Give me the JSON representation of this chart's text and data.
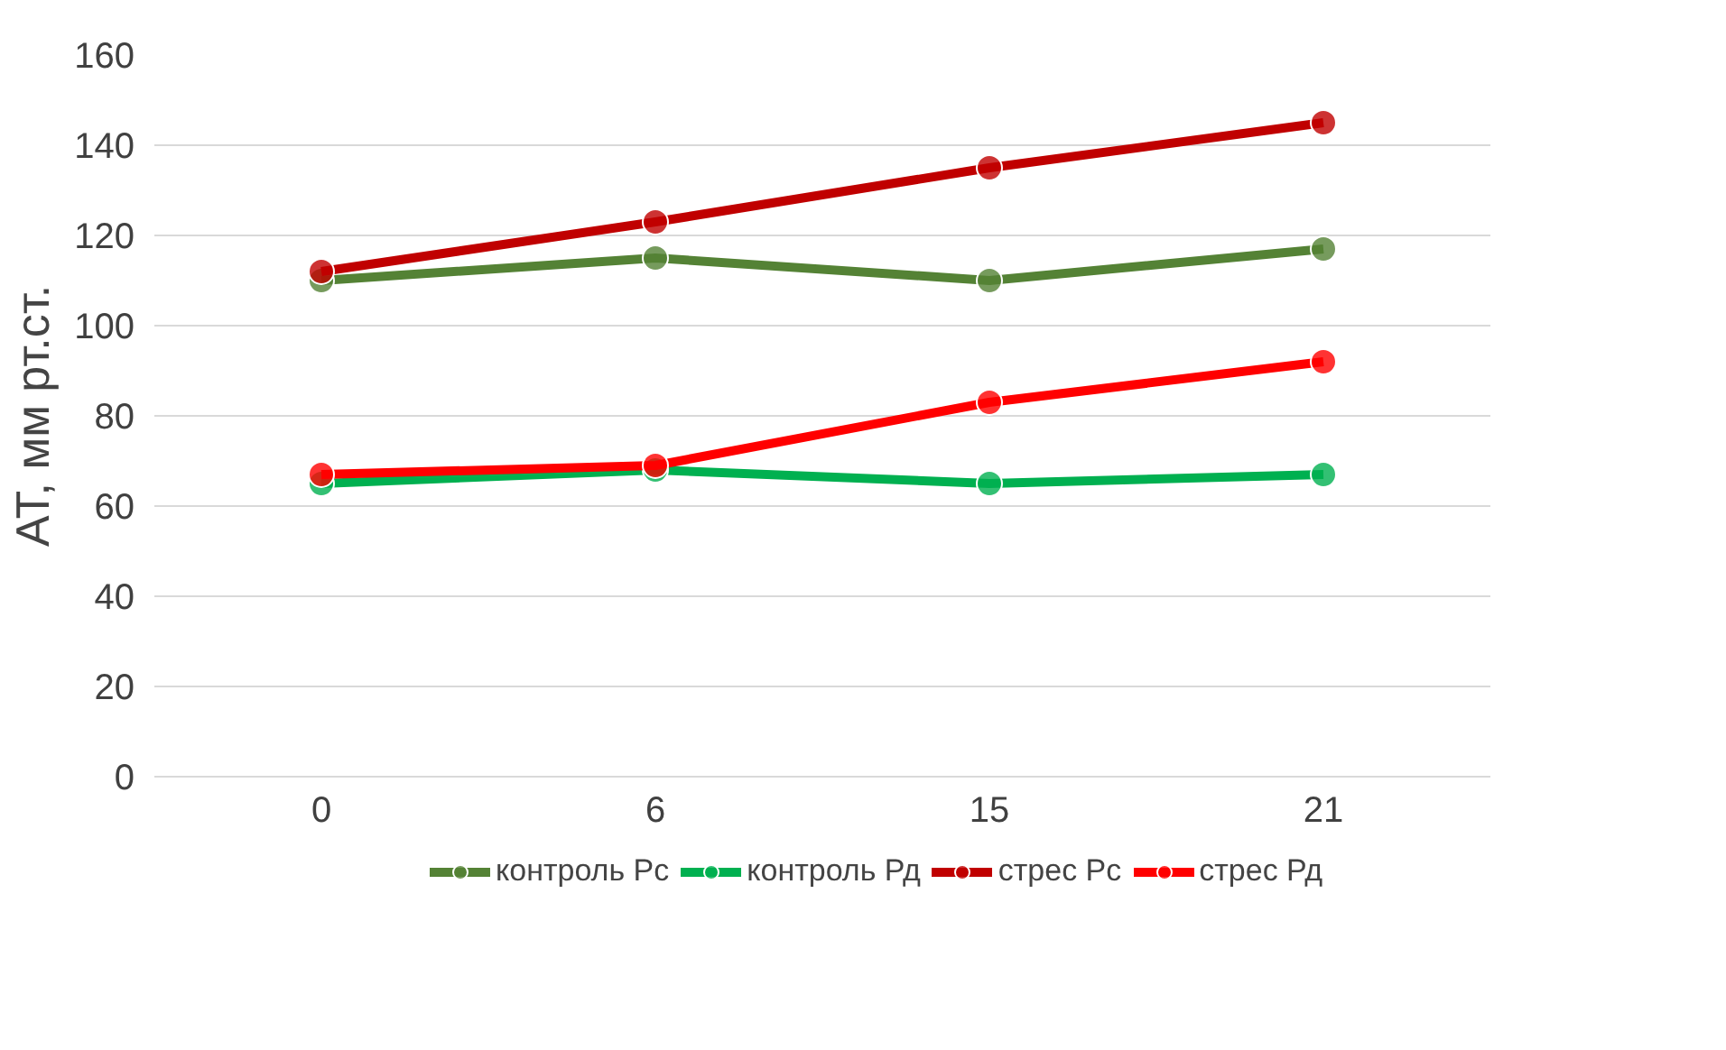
{
  "chart_data": {
    "type": "line",
    "ylabel": "АТ, мм рт.ст.",
    "categories": [
      "0",
      "6",
      "15",
      "21"
    ],
    "series": [
      {
        "name": "контроль Рс",
        "color": "#548235",
        "values": [
          110,
          115,
          110,
          117
        ]
      },
      {
        "name": "контроль Рд",
        "color": "#00b050",
        "values": [
          65,
          68,
          65,
          67
        ]
      },
      {
        "name": "стрес Рс",
        "color": "#c00000",
        "values": [
          112,
          123,
          135,
          145
        ]
      },
      {
        "name": "стрес Рд",
        "color": "#ff0000",
        "values": [
          67,
          69,
          83,
          92
        ]
      }
    ],
    "ylim": [
      0,
      160
    ],
    "yticks": [
      0,
      20,
      40,
      60,
      80,
      100,
      120,
      140,
      160
    ],
    "grid": "y",
    "legend": "bottom",
    "marker": "circle",
    "line_style": "solid"
  }
}
